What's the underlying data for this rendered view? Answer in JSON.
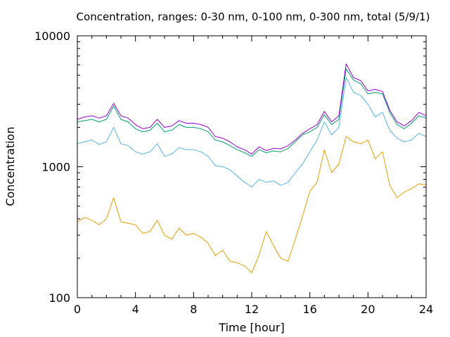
{
  "chart_data": {
    "type": "line",
    "title": "Concentration, ranges: 0-30 nm, 0-100 nm, 0-300 nm, total (5/9/1)",
    "xlabel": "Time [hour]",
    "ylabel": "Concentration",
    "xlim": [
      0,
      24
    ],
    "ylim": [
      100,
      10000
    ],
    "yscale": "log",
    "grid": false,
    "legend": "none",
    "x_ticks": [
      {
        "value": 0,
        "label": "0"
      },
      {
        "value": 4,
        "label": "4"
      },
      {
        "value": 8,
        "label": "8"
      },
      {
        "value": 12,
        "label": "12"
      },
      {
        "value": 16,
        "label": "16"
      },
      {
        "value": 20,
        "label": "20"
      },
      {
        "value": 24,
        "label": "24"
      }
    ],
    "y_ticks": [
      {
        "value": 100,
        "label": "100"
      },
      {
        "value": 1000,
        "label": "1000"
      },
      {
        "value": 10000,
        "label": "10000"
      }
    ],
    "x": [
      0,
      0.5,
      1,
      1.5,
      2,
      2.5,
      3,
      3.5,
      4,
      4.5,
      5,
      5.5,
      6,
      6.5,
      7,
      7.5,
      8,
      8.5,
      9,
      9.5,
      10,
      10.5,
      11,
      11.5,
      12,
      12.5,
      13,
      13.5,
      14,
      14.5,
      15,
      15.5,
      16,
      16.5,
      17,
      17.5,
      18,
      18.5,
      19,
      19.5,
      20,
      20.5,
      21,
      21.5,
      22,
      22.5,
      23,
      23.5,
      24
    ],
    "series": [
      {
        "color": "#e69f00",
        "values": [
          380,
          410,
          390,
          360,
          400,
          580,
          380,
          370,
          360,
          310,
          320,
          390,
          300,
          280,
          340,
          300,
          310,
          290,
          260,
          210,
          230,
          190,
          185,
          175,
          155,
          210,
          320,
          250,
          200,
          190,
          280,
          420,
          650,
          760,
          1350,
          900,
          1050,
          1700,
          1550,
          1500,
          1600,
          1150,
          1300,
          720,
          580,
          640,
          680,
          740,
          730
        ]
      },
      {
        "color": "#56b4e9",
        "values": [
          1500,
          1550,
          1600,
          1480,
          1550,
          2000,
          1500,
          1450,
          1300,
          1250,
          1300,
          1500,
          1200,
          1250,
          1400,
          1350,
          1350,
          1300,
          1200,
          1020,
          1000,
          950,
          850,
          760,
          700,
          800,
          760,
          780,
          720,
          760,
          900,
          1050,
          1300,
          1600,
          2200,
          1750,
          2000,
          4800,
          3700,
          3500,
          3000,
          2400,
          2600,
          1900,
          1650,
          1550,
          1600,
          1800,
          1700
        ]
      },
      {
        "color": "#009e73",
        "values": [
          2200,
          2250,
          2300,
          2200,
          2300,
          2900,
          2300,
          2200,
          1950,
          1850,
          1900,
          2150,
          1850,
          1900,
          2100,
          2000,
          2000,
          1950,
          1850,
          1600,
          1550,
          1450,
          1350,
          1280,
          1200,
          1350,
          1280,
          1320,
          1300,
          1380,
          1550,
          1750,
          1850,
          2000,
          2500,
          2100,
          2300,
          5600,
          4600,
          4300,
          3600,
          3700,
          3600,
          2600,
          2100,
          1950,
          2150,
          2450,
          2350
        ]
      },
      {
        "color": "#9400d3",
        "values": [
          2300,
          2400,
          2450,
          2350,
          2450,
          3050,
          2450,
          2350,
          2100,
          1950,
          2000,
          2300,
          2000,
          2050,
          2250,
          2150,
          2150,
          2100,
          2000,
          1700,
          1650,
          1550,
          1420,
          1350,
          1250,
          1420,
          1330,
          1380,
          1370,
          1450,
          1600,
          1800,
          1950,
          2100,
          2650,
          2200,
          2450,
          6100,
          4800,
          4550,
          3800,
          3900,
          3750,
          2700,
          2200,
          2050,
          2250,
          2600,
          2450
        ]
      }
    ]
  }
}
